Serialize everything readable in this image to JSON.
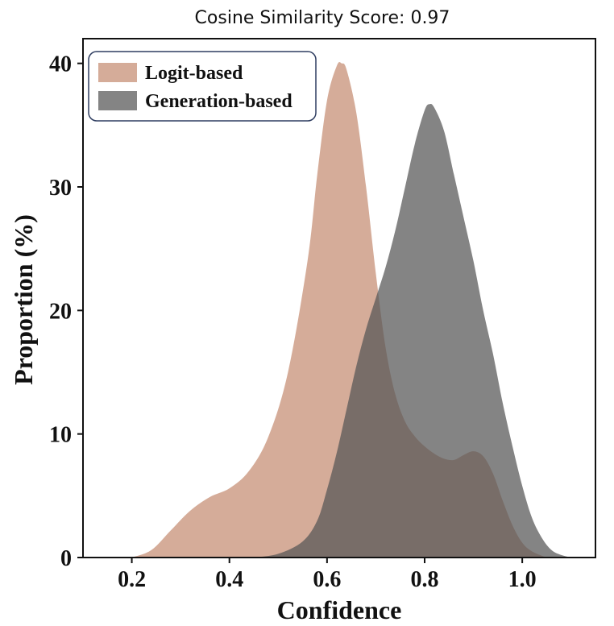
{
  "chart_data": {
    "type": "area",
    "title": "Cosine Similarity Score: 0.97",
    "xlabel": "Confidence",
    "ylabel": "Proportion (%)",
    "xlim": [
      0.1,
      1.15
    ],
    "ylim": [
      0,
      42
    ],
    "xticks": [
      0.2,
      0.4,
      0.6,
      0.8,
      1.0
    ],
    "xtick_labels": [
      "0.2",
      "0.4",
      "0.6",
      "0.8",
      "1.0"
    ],
    "yticks": [
      0,
      10,
      20,
      30,
      40
    ],
    "ytick_labels": [
      "0",
      "10",
      "20",
      "30",
      "40"
    ],
    "legend_position": "top-left",
    "grid": false,
    "series": [
      {
        "name": "Logit-based",
        "color": "#c9957c",
        "opacity": 0.78,
        "x": [
          0.2,
          0.24,
          0.28,
          0.32,
          0.36,
          0.4,
          0.44,
          0.48,
          0.52,
          0.56,
          0.58,
          0.6,
          0.62,
          0.63,
          0.64,
          0.66,
          0.68,
          0.7,
          0.72,
          0.74,
          0.76,
          0.78,
          0.8,
          0.82,
          0.84,
          0.86,
          0.88,
          0.9,
          0.92,
          0.94,
          0.96,
          0.98,
          1.0,
          1.02,
          1.05
        ],
        "y": [
          0,
          0.6,
          2.2,
          3.8,
          4.9,
          5.6,
          7.0,
          9.8,
          15.0,
          24.0,
          31.0,
          37.0,
          39.8,
          40.0,
          39.5,
          36.0,
          30.0,
          23.0,
          17.0,
          13.2,
          11.0,
          9.8,
          9.0,
          8.4,
          8.0,
          7.9,
          8.3,
          8.6,
          8.2,
          6.8,
          4.6,
          2.6,
          1.2,
          0.5,
          0
        ]
      },
      {
        "name": "Generation-based",
        "color": "#555555",
        "opacity": 0.72,
        "x": [
          0.45,
          0.5,
          0.55,
          0.58,
          0.6,
          0.62,
          0.64,
          0.66,
          0.68,
          0.7,
          0.72,
          0.74,
          0.76,
          0.78,
          0.8,
          0.81,
          0.82,
          0.84,
          0.86,
          0.88,
          0.9,
          0.92,
          0.94,
          0.96,
          0.98,
          1.0,
          1.02,
          1.04,
          1.06,
          1.08,
          1.1
        ],
        "y": [
          0,
          0.3,
          1.3,
          3.0,
          5.5,
          8.5,
          12.0,
          15.5,
          18.5,
          21.0,
          23.5,
          26.5,
          30.0,
          33.5,
          36.2,
          36.7,
          36.4,
          34.5,
          31.0,
          27.5,
          24.0,
          20.0,
          16.5,
          12.5,
          9.0,
          5.8,
          3.2,
          1.6,
          0.6,
          0.2,
          0
        ]
      }
    ]
  }
}
